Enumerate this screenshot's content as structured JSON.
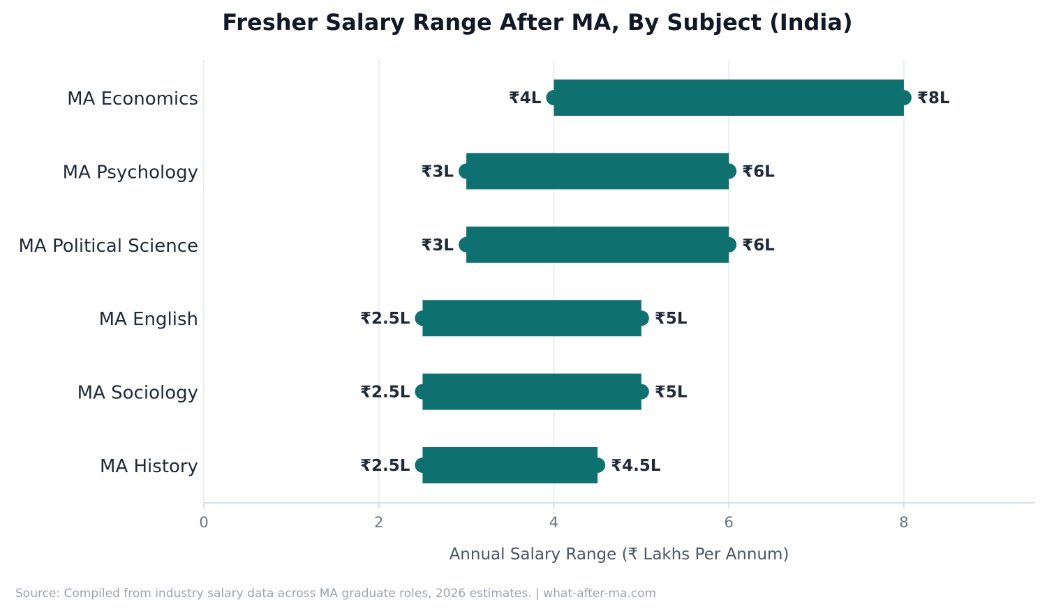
{
  "chart_data": {
    "type": "range_bar",
    "title": "Fresher Salary Range After MA, By Subject (India)",
    "xlabel": "Annual Salary Range (₹ Lakhs Per Annum)",
    "ylabel": "",
    "xlim": [
      0,
      9.5
    ],
    "xticks": [
      0,
      2,
      4,
      6,
      8
    ],
    "grid": "vertical",
    "bar_color": "#0f7070",
    "categories": [
      "MA Economics",
      "MA Psychology",
      "MA Political Science",
      "MA English",
      "MA Sociology",
      "MA History"
    ],
    "low": [
      4,
      3,
      3,
      2.5,
      2.5,
      2.5
    ],
    "high": [
      8,
      6,
      6,
      5,
      5,
      4.5
    ],
    "low_labels": [
      "₹4L",
      "₹3L",
      "₹3L",
      "₹2.5L",
      "₹2.5L",
      "₹2.5L"
    ],
    "high_labels": [
      "₹8L",
      "₹6L",
      "₹6L",
      "₹5L",
      "₹5L",
      "₹4.5L"
    ]
  },
  "footer": {
    "source": "Source: Compiled from industry salary data across MA graduate roles, 2026 estimates.  |  what-after-ma.com"
  }
}
